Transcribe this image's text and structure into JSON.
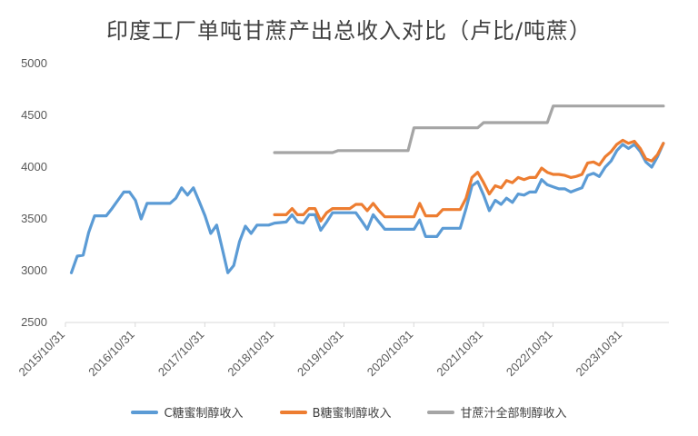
{
  "chart_data": {
    "type": "line",
    "title": "印度工厂单吨甘蔗产出总收入对比（卢比/吨蔗）",
    "xlabel": "",
    "ylabel": "",
    "ylim": [
      2500,
      5000
    ],
    "yticks": [
      2500,
      3000,
      3500,
      4000,
      4500,
      5000
    ],
    "xlim": [
      "2015-10-31",
      "2024-06-30"
    ],
    "xtick_labels": [
      "2015/10/31",
      "2016/10/31",
      "2017/10/31",
      "2018/10/31",
      "2019/10/31",
      "2020/10/31",
      "2021/10/31",
      "2022/10/31",
      "2023/10/31"
    ],
    "xtick_dates": [
      "2015-10-31",
      "2016-10-31",
      "2017-10-31",
      "2018-10-31",
      "2019-10-31",
      "2020-10-31",
      "2021-10-31",
      "2022-10-31",
      "2023-10-31"
    ],
    "grid": false,
    "legend_position": "bottom",
    "series": [
      {
        "name": "C糖蜜制醇收入",
        "color": "#5B9BD5",
        "points": [
          [
            "2015-12-01",
            2980
          ],
          [
            "2016-01-01",
            3140
          ],
          [
            "2016-02-01",
            3150
          ],
          [
            "2016-03-01",
            3370
          ],
          [
            "2016-04-01",
            3530
          ],
          [
            "2016-06-01",
            3530
          ],
          [
            "2016-07-01",
            3600
          ],
          [
            "2016-08-01",
            3680
          ],
          [
            "2016-09-01",
            3760
          ],
          [
            "2016-10-01",
            3760
          ],
          [
            "2016-11-01",
            3680
          ],
          [
            "2016-12-01",
            3500
          ],
          [
            "2017-01-01",
            3650
          ],
          [
            "2017-03-01",
            3650
          ],
          [
            "2017-05-01",
            3650
          ],
          [
            "2017-06-01",
            3700
          ],
          [
            "2017-07-01",
            3800
          ],
          [
            "2017-08-01",
            3730
          ],
          [
            "2017-09-01",
            3800
          ],
          [
            "2017-10-01",
            3670
          ],
          [
            "2017-11-01",
            3530
          ],
          [
            "2017-12-01",
            3360
          ],
          [
            "2018-01-01",
            3440
          ],
          [
            "2018-02-01",
            3200
          ],
          [
            "2018-03-01",
            2980
          ],
          [
            "2018-04-01",
            3050
          ],
          [
            "2018-05-01",
            3280
          ],
          [
            "2018-06-01",
            3430
          ],
          [
            "2018-07-01",
            3360
          ],
          [
            "2018-08-01",
            3440
          ],
          [
            "2018-10-01",
            3440
          ],
          [
            "2018-11-01",
            3460
          ],
          [
            "2019-01-01",
            3470
          ],
          [
            "2019-02-01",
            3540
          ],
          [
            "2019-03-01",
            3470
          ],
          [
            "2019-04-01",
            3460
          ],
          [
            "2019-05-01",
            3540
          ],
          [
            "2019-06-01",
            3540
          ],
          [
            "2019-07-01",
            3390
          ],
          [
            "2019-08-01",
            3470
          ],
          [
            "2019-09-01",
            3560
          ],
          [
            "2020-01-01",
            3560
          ],
          [
            "2020-02-01",
            3480
          ],
          [
            "2020-03-01",
            3400
          ],
          [
            "2020-04-01",
            3540
          ],
          [
            "2020-05-01",
            3470
          ],
          [
            "2020-06-01",
            3400
          ],
          [
            "2020-11-01",
            3400
          ],
          [
            "2020-12-01",
            3490
          ],
          [
            "2021-01-01",
            3330
          ],
          [
            "2021-03-01",
            3330
          ],
          [
            "2021-04-01",
            3410
          ],
          [
            "2021-07-01",
            3410
          ],
          [
            "2021-08-01",
            3600
          ],
          [
            "2021-09-01",
            3820
          ],
          [
            "2021-10-01",
            3860
          ],
          [
            "2021-11-01",
            3730
          ],
          [
            "2021-12-01",
            3580
          ],
          [
            "2022-01-01",
            3680
          ],
          [
            "2022-02-01",
            3640
          ],
          [
            "2022-03-01",
            3700
          ],
          [
            "2022-04-01",
            3660
          ],
          [
            "2022-05-01",
            3740
          ],
          [
            "2022-06-01",
            3730
          ],
          [
            "2022-07-01",
            3760
          ],
          [
            "2022-08-01",
            3760
          ],
          [
            "2022-09-01",
            3880
          ],
          [
            "2022-10-01",
            3830
          ],
          [
            "2022-11-01",
            3810
          ],
          [
            "2022-12-01",
            3790
          ],
          [
            "2023-01-01",
            3790
          ],
          [
            "2023-02-01",
            3760
          ],
          [
            "2023-03-01",
            3780
          ],
          [
            "2023-04-01",
            3800
          ],
          [
            "2023-05-01",
            3920
          ],
          [
            "2023-06-01",
            3940
          ],
          [
            "2023-07-01",
            3910
          ],
          [
            "2023-08-01",
            4000
          ],
          [
            "2023-09-01",
            4060
          ],
          [
            "2023-10-01",
            4160
          ],
          [
            "2023-11-01",
            4220
          ],
          [
            "2023-12-01",
            4180
          ],
          [
            "2024-01-01",
            4220
          ],
          [
            "2024-02-01",
            4150
          ],
          [
            "2024-03-01",
            4050
          ],
          [
            "2024-04-01",
            4000
          ],
          [
            "2024-05-01",
            4100
          ],
          [
            "2024-06-01",
            4230
          ]
        ]
      },
      {
        "name": "B糖蜜制醇收入",
        "color": "#ED7D31",
        "points": [
          [
            "2018-11-01",
            3540
          ],
          [
            "2019-01-01",
            3540
          ],
          [
            "2019-02-01",
            3600
          ],
          [
            "2019-03-01",
            3540
          ],
          [
            "2019-04-01",
            3540
          ],
          [
            "2019-05-01",
            3600
          ],
          [
            "2019-06-01",
            3600
          ],
          [
            "2019-07-01",
            3480
          ],
          [
            "2019-08-01",
            3560
          ],
          [
            "2019-09-01",
            3600
          ],
          [
            "2019-12-01",
            3600
          ],
          [
            "2020-01-01",
            3640
          ],
          [
            "2020-02-01",
            3640
          ],
          [
            "2020-03-01",
            3580
          ],
          [
            "2020-04-01",
            3650
          ],
          [
            "2020-05-01",
            3580
          ],
          [
            "2020-06-01",
            3520
          ],
          [
            "2020-11-01",
            3520
          ],
          [
            "2020-12-01",
            3650
          ],
          [
            "2021-01-01",
            3530
          ],
          [
            "2021-03-01",
            3530
          ],
          [
            "2021-04-01",
            3590
          ],
          [
            "2021-07-01",
            3590
          ],
          [
            "2021-08-01",
            3700
          ],
          [
            "2021-09-01",
            3900
          ],
          [
            "2021-10-01",
            3950
          ],
          [
            "2021-11-01",
            3850
          ],
          [
            "2021-12-01",
            3740
          ],
          [
            "2022-01-01",
            3820
          ],
          [
            "2022-02-01",
            3800
          ],
          [
            "2022-03-01",
            3870
          ],
          [
            "2022-04-01",
            3850
          ],
          [
            "2022-05-01",
            3900
          ],
          [
            "2022-06-01",
            3880
          ],
          [
            "2022-07-01",
            3900
          ],
          [
            "2022-08-01",
            3900
          ],
          [
            "2022-09-01",
            3990
          ],
          [
            "2022-10-01",
            3950
          ],
          [
            "2022-11-01",
            3930
          ],
          [
            "2022-12-01",
            3930
          ],
          [
            "2023-01-01",
            3920
          ],
          [
            "2023-02-01",
            3900
          ],
          [
            "2023-03-01",
            3910
          ],
          [
            "2023-04-01",
            3930
          ],
          [
            "2023-05-01",
            4040
          ],
          [
            "2023-06-01",
            4050
          ],
          [
            "2023-07-01",
            4020
          ],
          [
            "2023-08-01",
            4100
          ],
          [
            "2023-09-01",
            4150
          ],
          [
            "2023-10-01",
            4220
          ],
          [
            "2023-11-01",
            4260
          ],
          [
            "2023-12-01",
            4230
          ],
          [
            "2024-01-01",
            4250
          ],
          [
            "2024-02-01",
            4180
          ],
          [
            "2024-03-01",
            4080
          ],
          [
            "2024-04-01",
            4060
          ],
          [
            "2024-05-01",
            4120
          ],
          [
            "2024-06-01",
            4230
          ]
        ]
      },
      {
        "name": "甘蔗汁全部制醇收入",
        "color": "#A5A5A5",
        "points": [
          [
            "2018-11-01",
            4140
          ],
          [
            "2019-09-01",
            4140
          ],
          [
            "2019-10-01",
            4160
          ],
          [
            "2020-10-01",
            4160
          ],
          [
            "2020-11-01",
            4380
          ],
          [
            "2021-10-01",
            4380
          ],
          [
            "2021-11-01",
            4430
          ],
          [
            "2022-10-01",
            4430
          ],
          [
            "2022-11-01",
            4590
          ],
          [
            "2024-06-01",
            4590
          ]
        ]
      }
    ]
  }
}
